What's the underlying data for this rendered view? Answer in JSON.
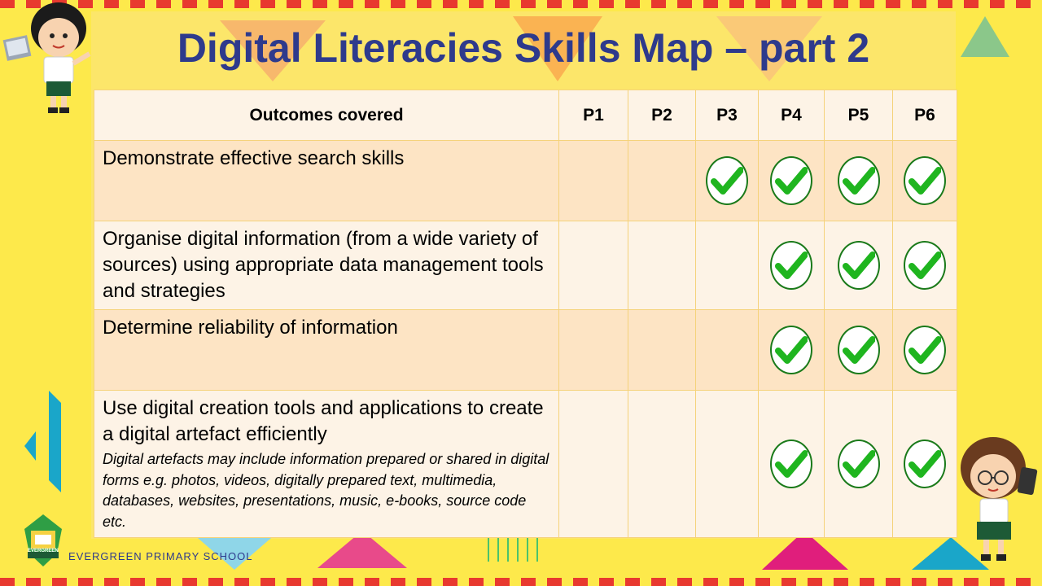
{
  "slide": {
    "title": "Digital Literacies Skills Map – part 2",
    "school_name": "EVERGREEN PRIMARY SCHOOL",
    "logo_text": "EVERGREEN"
  },
  "table": {
    "headers": [
      "Outcomes covered",
      "P1",
      "P2",
      "P3",
      "P4",
      "P5",
      "P6"
    ],
    "rows": [
      {
        "outcome": "Demonstrate effective search skills",
        "note": "",
        "checks": [
          false,
          false,
          true,
          true,
          true,
          true
        ]
      },
      {
        "outcome": "Organise digital information (from a wide variety of sources) using appropriate data management tools and strategies",
        "note": "",
        "checks": [
          false,
          false,
          false,
          true,
          true,
          true
        ]
      },
      {
        "outcome": "Determine reliability of information",
        "note": "",
        "checks": [
          false,
          false,
          false,
          true,
          true,
          true
        ]
      },
      {
        "outcome": "Use digital creation tools and applications to create a digital artefact efficiently",
        "note": "Digital artefacts may include information prepared or shared in digital forms e.g. photos, videos, digitally prepared text, multimedia, databases, websites, presentations, music, e-books, source code etc.",
        "checks": [
          false,
          false,
          false,
          true,
          true,
          true
        ]
      }
    ]
  },
  "colors": {
    "background": "#fde94b",
    "title": "#2e3a8c",
    "check": "#1fb51f"
  },
  "icons": {
    "check": "check-circle-icon",
    "boy": "boy-with-laptop-illustration",
    "girl": "girl-with-tablet-illustration",
    "logo": "evergreen-logo"
  }
}
